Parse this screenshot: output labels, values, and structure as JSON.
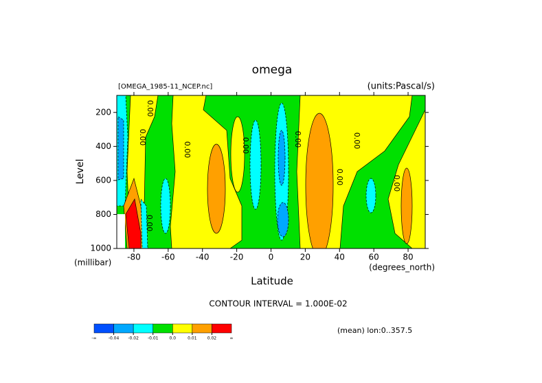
{
  "chart_data": {
    "type": "contour",
    "title": "omega",
    "subtitle": "[OMEGA_1985-11_NCEP.nc]",
    "units": "(units:Pascal/s)",
    "x_label": "Latitude",
    "x_units": "(degrees_north)",
    "y_label": "Level",
    "y_units": "(millibar)",
    "xlim": [
      -90,
      90
    ],
    "xticks": [
      -80,
      -60,
      -40,
      -20,
      0,
      20,
      40,
      60,
      80
    ],
    "ylim": [
      1000,
      100
    ],
    "yticks": [
      200,
      400,
      600,
      800,
      1000
    ],
    "contour_labels": [
      "0.00",
      "0.00",
      "0.00",
      "0.00",
      "0.00",
      "0.00",
      "0.00",
      "0.00",
      "0.00"
    ],
    "contour_interval_text": "CONTOUR INTERVAL = 1.000E-02",
    "footnote": "(mean) lon:0..357.5",
    "colorbar": {
      "colors": [
        "#0050ff",
        "#00a8ff",
        "#00ffff",
        "#00e000",
        "#ffff00",
        "#ffa000",
        "#ff0000"
      ],
      "ticks": [
        {
          "label": "-∞"
        },
        -0.04,
        -0.02,
        -0.01,
        {
          "value": 0,
          "label": "0.0"
        },
        0.01,
        0.02,
        {
          "label": "∞"
        }
      ]
    }
  }
}
